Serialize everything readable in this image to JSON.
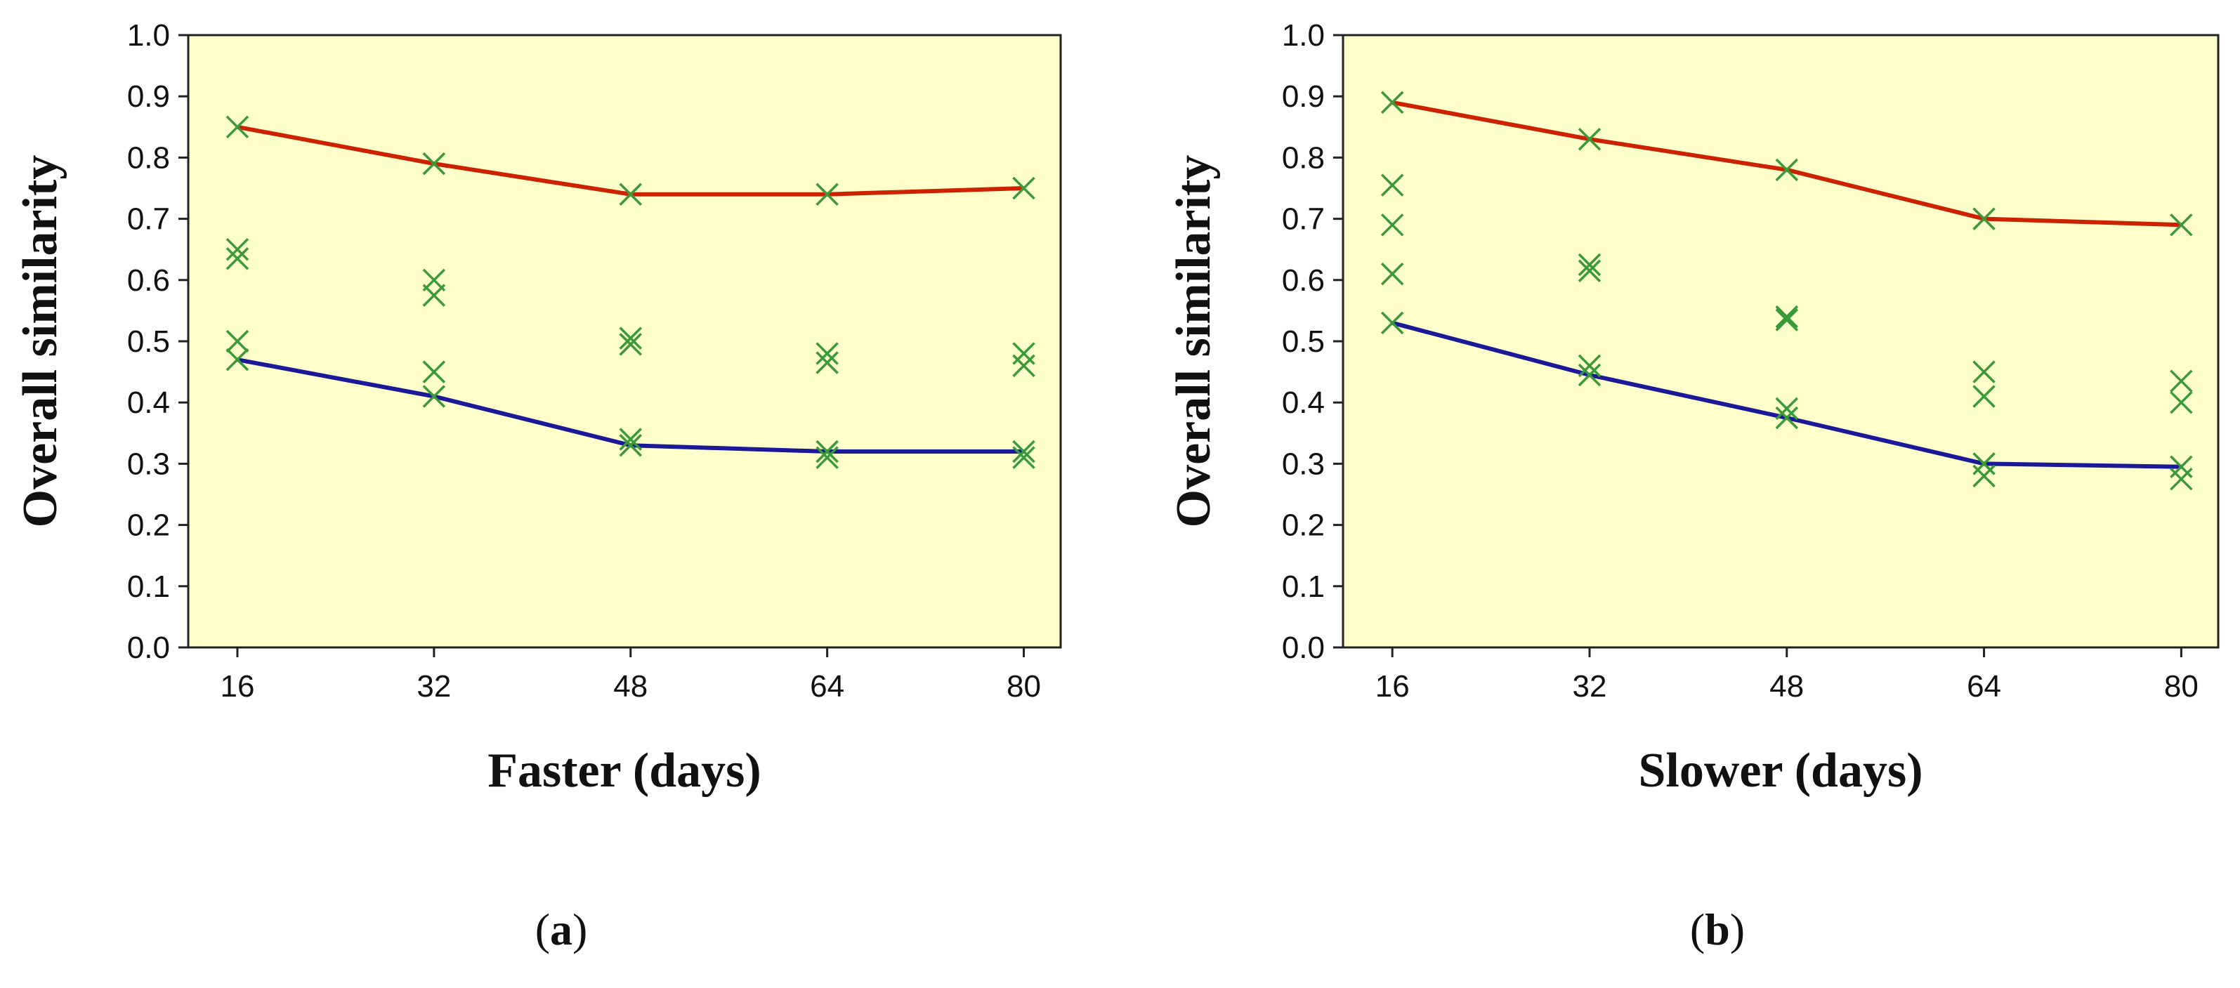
{
  "chart_data": [
    {
      "type": "line",
      "caption_letter": "a",
      "title": "",
      "xlabel": "Faster (days)",
      "ylabel": "Overall similarity",
      "x": [
        16,
        32,
        48,
        64,
        80
      ],
      "xticks": [
        "16",
        "32",
        "48",
        "64",
        "80"
      ],
      "xlim": [
        12,
        83
      ],
      "ylim": [
        0.0,
        1.0
      ],
      "yticks": [
        "0.0",
        "0.1",
        "0.2",
        "0.3",
        "0.4",
        "0.5",
        "0.6",
        "0.7",
        "0.8",
        "0.9",
        "1.0"
      ],
      "grid": false,
      "background_color": "#FFFFCC",
      "series": [
        {
          "type": "line",
          "color": "#CC2200",
          "values": [
            0.85,
            0.79,
            0.74,
            0.74,
            0.75
          ]
        },
        {
          "type": "line",
          "color": "#1A1A99",
          "values": [
            0.47,
            0.41,
            0.33,
            0.32,
            0.32
          ]
        },
        {
          "type": "scatter",
          "color": "#3A9A3A",
          "points": [
            [
              16,
              0.85
            ],
            [
              16,
              0.65
            ],
            [
              16,
              0.635
            ],
            [
              16,
              0.5
            ],
            [
              16,
              0.47
            ],
            [
              32,
              0.79
            ],
            [
              32,
              0.6
            ],
            [
              32,
              0.575
            ],
            [
              32,
              0.45
            ],
            [
              32,
              0.41
            ],
            [
              48,
              0.74
            ],
            [
              48,
              0.505
            ],
            [
              48,
              0.495
            ],
            [
              48,
              0.34
            ],
            [
              48,
              0.33
            ],
            [
              64,
              0.74
            ],
            [
              64,
              0.48
            ],
            [
              64,
              0.465
            ],
            [
              64,
              0.32
            ],
            [
              64,
              0.31
            ],
            [
              80,
              0.75
            ],
            [
              80,
              0.48
            ],
            [
              80,
              0.46
            ],
            [
              80,
              0.32
            ],
            [
              80,
              0.31
            ]
          ]
        }
      ]
    },
    {
      "type": "line",
      "caption_letter": "b",
      "title": "",
      "xlabel": "Slower (days)",
      "ylabel": "Overall similarity",
      "x": [
        16,
        32,
        48,
        64,
        80
      ],
      "xticks": [
        "16",
        "32",
        "48",
        "64",
        "80"
      ],
      "xlim": [
        12,
        83
      ],
      "ylim": [
        0.0,
        1.0
      ],
      "yticks": [
        "0.0",
        "0.1",
        "0.2",
        "0.3",
        "0.4",
        "0.5",
        "0.6",
        "0.7",
        "0.8",
        "0.9",
        "1.0"
      ],
      "grid": false,
      "background_color": "#FFFFCC",
      "series": [
        {
          "type": "line",
          "color": "#CC2200",
          "values": [
            0.89,
            0.83,
            0.78,
            0.7,
            0.69
          ]
        },
        {
          "type": "line",
          "color": "#1A1A99",
          "values": [
            0.53,
            0.445,
            0.375,
            0.3,
            0.295
          ]
        },
        {
          "type": "scatter",
          "color": "#3A9A3A",
          "points": [
            [
              16,
              0.89
            ],
            [
              16,
              0.755
            ],
            [
              16,
              0.69
            ],
            [
              16,
              0.61
            ],
            [
              16,
              0.53
            ],
            [
              32,
              0.83
            ],
            [
              32,
              0.625
            ],
            [
              32,
              0.615
            ],
            [
              32,
              0.46
            ],
            [
              32,
              0.445
            ],
            [
              48,
              0.78
            ],
            [
              48,
              0.54
            ],
            [
              48,
              0.535
            ],
            [
              48,
              0.39
            ],
            [
              48,
              0.375
            ],
            [
              64,
              0.7
            ],
            [
              64,
              0.45
            ],
            [
              64,
              0.41
            ],
            [
              64,
              0.3
            ],
            [
              64,
              0.28
            ],
            [
              80,
              0.69
            ],
            [
              80,
              0.435
            ],
            [
              80,
              0.4
            ],
            [
              80,
              0.295
            ],
            [
              80,
              0.275
            ]
          ]
        }
      ]
    }
  ]
}
